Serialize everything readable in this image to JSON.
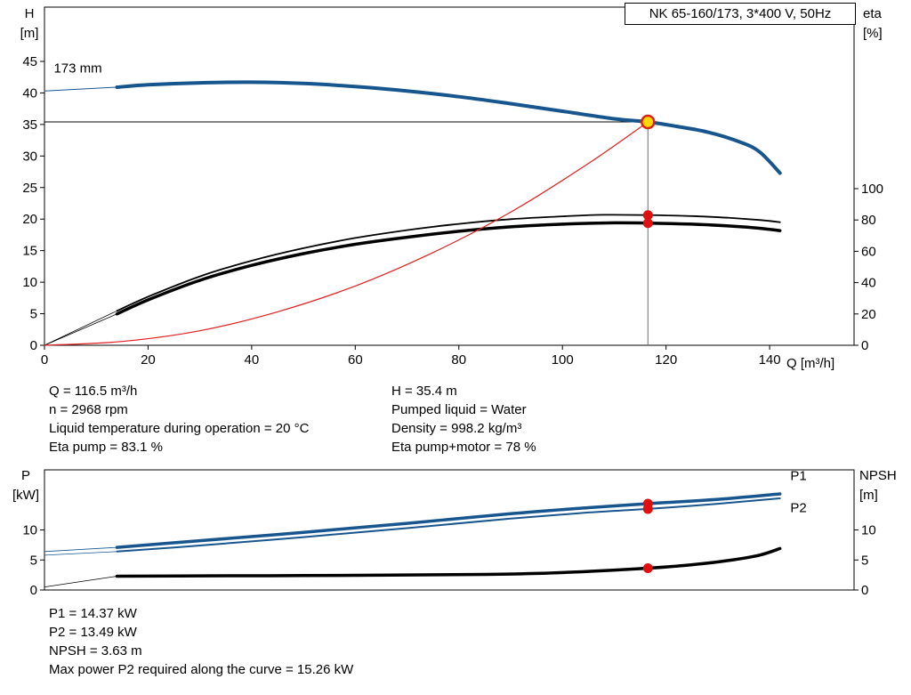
{
  "title_box": "NK 65-160/173, 3*400 V, 50Hz",
  "axes": {
    "h": [
      "H",
      "[m]"
    ],
    "eta": [
      "eta",
      "[%]"
    ],
    "q_label": "Q [m³/h]",
    "p": [
      "P",
      "[kW]"
    ],
    "npsh": [
      "NPSH",
      "[m]"
    ]
  },
  "info": {
    "left": [
      "Q = 116.5 m³/h",
      "n = 2968 rpm",
      "Liquid temperature during operation = 20 °C",
      "Eta pump = 83.1 %"
    ],
    "right": [
      "H = 35.4 m",
      "Pumped liquid = Water",
      "Density = 998.2 kg/m³",
      "Eta pump+motor = 78 %"
    ]
  },
  "results": [
    "P1 = 14.37 kW",
    "P2 = 13.49 kW",
    "NPSH = 3.63 m",
    "Max power P2 required along the curve = 15.26 kW"
  ],
  "colors": {
    "curve_blue": "#17558e",
    "label_blue": "#2e6fb5",
    "red": "#e01010",
    "duty_yellow": "#ffd900",
    "guide_gray": "#707070"
  },
  "chart_data": [
    {
      "type": "line",
      "name": "qh-eta",
      "title": "QH and efficiency curves",
      "xlabel": "Q [m³/h]",
      "ylabel_left": "H [m]",
      "ylabel_right": "eta [%]",
      "xlim": [
        0,
        156.3
      ],
      "ylim_left": [
        0,
        53.6
      ],
      "ylim_right": [
        0,
        215.9
      ],
      "x_ticks": [
        0,
        20,
        40,
        60,
        80,
        100,
        120,
        140
      ],
      "y_ticks_left": [
        0,
        5,
        10,
        15,
        20,
        25,
        30,
        35,
        40,
        45
      ],
      "y_ticks_right": [
        0,
        20,
        40,
        60,
        80,
        100
      ],
      "grid": false,
      "series": [
        {
          "name": "head-curve-lead",
          "axis": "left",
          "color": "#17558e",
          "width": 1,
          "points": [
            [
              0,
              40.3
            ],
            [
              14,
              40.9
            ]
          ]
        },
        {
          "name": "head-curve-173mm",
          "axis": "left",
          "color": "#17558e",
          "width": 4,
          "points": [
            [
              14,
              40.9
            ],
            [
              20,
              41.3
            ],
            [
              30,
              41.6
            ],
            [
              40,
              41.7
            ],
            [
              50,
              41.5
            ],
            [
              60,
              41.0
            ],
            [
              70,
              40.3
            ],
            [
              80,
              39.4
            ],
            [
              90,
              38.3
            ],
            [
              100,
              37.1
            ],
            [
              110,
              35.9
            ],
            [
              116.5,
              35.4
            ],
            [
              122,
              34.7
            ],
            [
              128,
              33.8
            ],
            [
              134,
              32.3
            ],
            [
              138,
              30.7
            ],
            [
              142,
              27.3
            ]
          ]
        },
        {
          "name": "eta-pump-lead",
          "axis": "right",
          "color": "#000000",
          "width": 0.8,
          "points": [
            [
              0,
              0
            ],
            [
              14,
              22
            ]
          ]
        },
        {
          "name": "eta-pump",
          "axis": "right",
          "color": "#000000",
          "width": 1.8,
          "points": [
            [
              14,
              22
            ],
            [
              20,
              31
            ],
            [
              30,
              44
            ],
            [
              40,
              54
            ],
            [
              50,
              62
            ],
            [
              60,
              68.5
            ],
            [
              70,
              73.5
            ],
            [
              80,
              77.5
            ],
            [
              90,
              80.5
            ],
            [
              100,
              82.3
            ],
            [
              108,
              83.3
            ],
            [
              116.5,
              83.1
            ],
            [
              125,
              82.5
            ],
            [
              132,
              81.4
            ],
            [
              138,
              80.0
            ],
            [
              142,
              78.6
            ]
          ]
        },
        {
          "name": "eta-pump-motor-lead",
          "axis": "right",
          "color": "#000000",
          "width": 0.8,
          "points": [
            [
              0,
              0
            ],
            [
              14,
              20
            ]
          ]
        },
        {
          "name": "eta-pump-motor",
          "axis": "right",
          "color": "#000000",
          "width": 3.5,
          "points": [
            [
              14,
              20
            ],
            [
              20,
              29
            ],
            [
              30,
              41.5
            ],
            [
              40,
              51
            ],
            [
              50,
              58.5
            ],
            [
              60,
              64.5
            ],
            [
              70,
              69
            ],
            [
              80,
              72.8
            ],
            [
              90,
              75.6
            ],
            [
              100,
              77.3
            ],
            [
              110,
              78.2
            ],
            [
              116.5,
              78.0
            ],
            [
              125,
              77.3
            ],
            [
              132,
              76.2
            ],
            [
              138,
              74.7
            ],
            [
              142,
              73.2
            ]
          ]
        },
        {
          "name": "system-curve",
          "axis": "left",
          "color": "#e02020",
          "width": 1.2,
          "points": [
            [
              0,
              0
            ],
            [
              15,
              0.6
            ],
            [
              30,
              2.3
            ],
            [
              45,
              5.3
            ],
            [
              60,
              9.4
            ],
            [
              75,
              14.7
            ],
            [
              90,
              21.1
            ],
            [
              105,
              28.8
            ],
            [
              116.5,
              35.4
            ]
          ]
        }
      ],
      "guides": [
        {
          "type": "h",
          "axis": "left",
          "y": 35.4,
          "x_from": 0,
          "x_to": 116.5,
          "color": "#000000",
          "width": 1
        },
        {
          "type": "v",
          "axis": "left",
          "x": 116.5,
          "y_from": 0,
          "y_to": 35.4,
          "color": "#707070",
          "width": 1
        }
      ],
      "markers": [
        {
          "name": "duty-point",
          "axis": "left",
          "x": 116.5,
          "y": 35.4,
          "r": 7,
          "fill": "#ffd900",
          "stroke": "#dd2211",
          "stroke_width": 2.5
        },
        {
          "name": "eta-pump-point",
          "axis": "right",
          "x": 116.5,
          "y": 83.1,
          "r": 5.5,
          "fill": "#e01010",
          "stroke": "none",
          "stroke_width": 0
        },
        {
          "name": "eta-pump-motor-point",
          "axis": "right",
          "x": 116.5,
          "y": 78,
          "r": 5.5,
          "fill": "#e01010",
          "stroke": "none",
          "stroke_width": 0
        }
      ],
      "annotations": [
        {
          "text": "173 mm",
          "axis": "left",
          "x": 1.8,
          "y": 43.2,
          "color": "#000000",
          "size": 15
        }
      ]
    },
    {
      "type": "line",
      "name": "power-npsh",
      "title": "Power and NPSH curves",
      "xlabel": "Q [m³/h]",
      "ylabel_left": "P [kW]",
      "ylabel_right": "NPSH [m]",
      "xlim": [
        0,
        156.3
      ],
      "ylim_left": [
        0,
        20
      ],
      "ylim_right": [
        0,
        20
      ],
      "x_ticks": [],
      "y_ticks_left": [
        0,
        5,
        10
      ],
      "y_ticks_right": [
        0,
        5,
        10
      ],
      "grid": false,
      "series": [
        {
          "name": "p1-lead",
          "axis": "left",
          "color": "#17558e",
          "width": 0.8,
          "points": [
            [
              0,
              6.4
            ],
            [
              14,
              7.1
            ]
          ]
        },
        {
          "name": "p1-curve",
          "axis": "left",
          "color": "#17558e",
          "width": 3.5,
          "points": [
            [
              14,
              7.1
            ],
            [
              30,
              8.2
            ],
            [
              50,
              9.6
            ],
            [
              70,
              11.1
            ],
            [
              90,
              12.7
            ],
            [
              105,
              13.7
            ],
            [
              116.5,
              14.37
            ],
            [
              130,
              15.1
            ],
            [
              142,
              16.0
            ]
          ]
        },
        {
          "name": "p2-lead",
          "axis": "left",
          "color": "#17558e",
          "width": 0.8,
          "points": [
            [
              0,
              5.8
            ],
            [
              14,
              6.4
            ]
          ]
        },
        {
          "name": "p2-curve",
          "axis": "left",
          "color": "#17558e",
          "width": 2,
          "points": [
            [
              14,
              6.4
            ],
            [
              30,
              7.4
            ],
            [
              50,
              8.8
            ],
            [
              70,
              10.3
            ],
            [
              90,
              11.9
            ],
            [
              105,
              12.9
            ],
            [
              116.5,
              13.49
            ],
            [
              130,
              14.35
            ],
            [
              142,
              15.26
            ]
          ]
        },
        {
          "name": "npsh-lead",
          "axis": "right",
          "color": "#000000",
          "width": 0.8,
          "points": [
            [
              0,
              0.5
            ],
            [
              14,
              2.3
            ]
          ]
        },
        {
          "name": "npsh-curve",
          "axis": "right",
          "color": "#000000",
          "width": 3.5,
          "points": [
            [
              14,
              2.3
            ],
            [
              30,
              2.35
            ],
            [
              50,
              2.4
            ],
            [
              70,
              2.5
            ],
            [
              85,
              2.6
            ],
            [
              95,
              2.75
            ],
            [
              105,
              3.1
            ],
            [
              116.5,
              3.63
            ],
            [
              125,
              4.2
            ],
            [
              132,
              4.9
            ],
            [
              138,
              5.8
            ],
            [
              142,
              6.9
            ]
          ]
        }
      ],
      "guides": [],
      "markers": [
        {
          "name": "p1-point",
          "axis": "left",
          "x": 116.5,
          "y": 14.37,
          "r": 5.5,
          "fill": "#e01010",
          "stroke": "none",
          "stroke_width": 0
        },
        {
          "name": "p2-point",
          "axis": "left",
          "x": 116.5,
          "y": 13.49,
          "r": 5.5,
          "fill": "#e01010",
          "stroke": "none",
          "stroke_width": 0
        },
        {
          "name": "npsh-point",
          "axis": "right",
          "x": 116.5,
          "y": 3.63,
          "r": 5.5,
          "fill": "#e01010",
          "stroke": "none",
          "stroke_width": 0
        }
      ],
      "annotations": [
        {
          "text": "P1",
          "axis": "left",
          "x": 144,
          "y": 18.3,
          "color": "#2e6fb5",
          "size": 15
        },
        {
          "text": "P2",
          "axis": "left",
          "x": 144,
          "y": 13.0,
          "color": "#2e6fb5",
          "size": 15
        }
      ]
    }
  ]
}
